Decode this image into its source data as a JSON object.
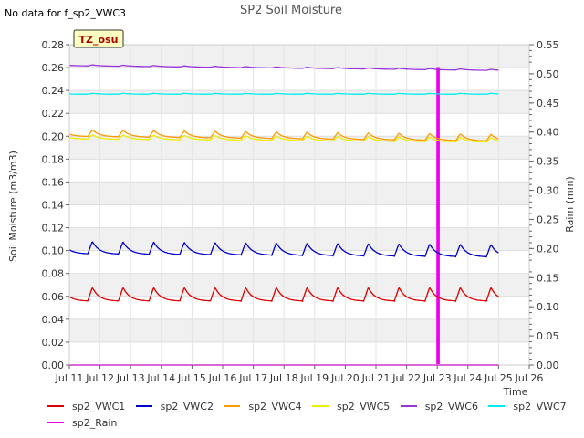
{
  "notice": "No data for f_sp2_VWC3",
  "badge": "TZ_osu",
  "colors": {
    "sp2_VWC1": "#dd0000",
    "sp2_VWC2": "#0000cc",
    "sp2_VWC4": "#ff9900",
    "sp2_VWC5": "#eeee00",
    "sp2_VWC6": "#9933dd",
    "sp2_VWC7": "#00eeee",
    "sp2_Rain": "#ee00ee"
  },
  "chart_data": {
    "type": "line",
    "title": "SP2 Soil Moisture",
    "xlabel": "Time",
    "ylabel": "Soil Moisture (m3/m3)",
    "y2label": "Raim (mm)",
    "x_ticks": [
      "Jul 11",
      "Jul 12",
      "Jul 13",
      "Jul 14",
      "Jul 15",
      "Jul 16",
      "Jul 17",
      "Jul 18",
      "Jul 19",
      "Jul 20",
      "Jul 21",
      "Jul 22",
      "Jul 23",
      "Jul 24",
      "Jul 25",
      "Jul 26"
    ],
    "xlim": [
      11,
      26
    ],
    "ylim": [
      0,
      0.28
    ],
    "y_ticks": [
      "0.00",
      "0.02",
      "0.04",
      "0.06",
      "0.08",
      "0.10",
      "0.12",
      "0.14",
      "0.16",
      "0.18",
      "0.20",
      "0.22",
      "0.24",
      "0.26",
      "0.28"
    ],
    "y2lim": [
      0,
      0.55
    ],
    "y2_ticks": [
      "0.00",
      "0.05",
      "0.10",
      "0.15",
      "0.20",
      "0.25",
      "0.30",
      "0.35",
      "0.40",
      "0.45",
      "0.50",
      "0.55"
    ],
    "grid": true,
    "legend_position": "bottom",
    "series": [
      {
        "name": "sp2_VWC1",
        "axis": "left",
        "x_start": 11.0,
        "x_end": 25.0,
        "base": 0.06,
        "amplitude": 0.012,
        "trend": 0.0,
        "phase": 0.6
      },
      {
        "name": "sp2_VWC2",
        "axis": "left",
        "x_start": 11.0,
        "x_end": 25.0,
        "base": 0.101,
        "amplitude": 0.011,
        "trend": -0.0002,
        "phase": 0.6
      },
      {
        "name": "sp2_VWC4",
        "axis": "left",
        "x_start": 11.0,
        "x_end": 25.0,
        "base": 0.202,
        "amplitude": 0.006,
        "trend": -0.0003,
        "phase": 0.6
      },
      {
        "name": "sp2_VWC5",
        "axis": "left",
        "x_start": 11.0,
        "x_end": 25.0,
        "base": 0.199,
        "amplitude": 0.004,
        "trend": -0.0002,
        "phase": 0.6
      },
      {
        "name": "sp2_VWC6",
        "axis": "left",
        "x_start": 11.0,
        "x_end": 25.0,
        "base": 0.262,
        "amplitude": 0.001,
        "trend": -0.0003,
        "phase": 0.6
      },
      {
        "name": "sp2_VWC7",
        "axis": "left",
        "x_start": 11.0,
        "x_end": 25.0,
        "base": 0.237,
        "amplitude": 0.0008,
        "trend": 0.0,
        "phase": 0.6
      },
      {
        "name": "sp2_Rain",
        "axis": "right",
        "x": [
          11.0,
          23.0,
          23.0,
          23.05,
          23.05,
          25.0
        ],
        "y": [
          0,
          0,
          0.51,
          0.51,
          0,
          0
        ]
      }
    ]
  }
}
